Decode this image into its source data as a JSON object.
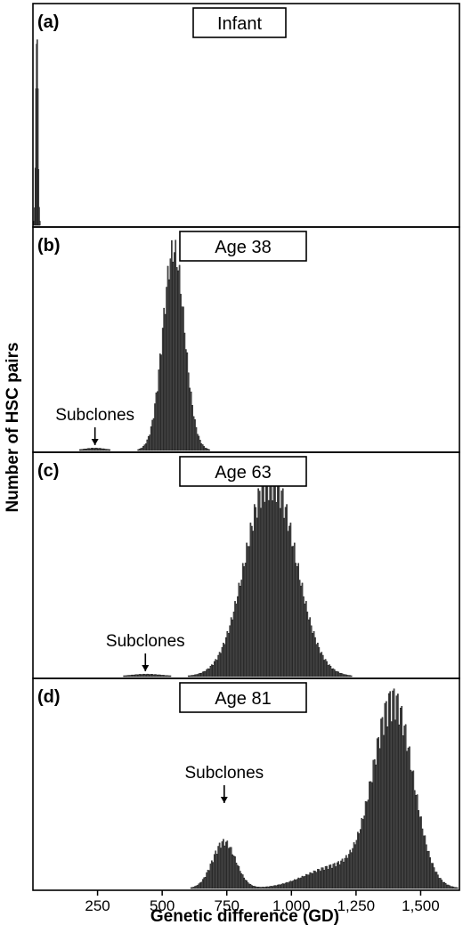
{
  "chart_data": {
    "type": "bar",
    "xlabel": "Genetic difference (GD)",
    "ylabel": "Number of HSC pairs",
    "xlim": [
      0,
      1650
    ],
    "xticks": [
      250,
      500,
      750,
      1000,
      1250,
      1500
    ],
    "xtick_labels": [
      "250",
      "500",
      "750",
      "1,000",
      "1,250",
      "1,500"
    ],
    "panels": [
      {
        "letter": "(a)",
        "title": "Infant",
        "components": [
          {
            "mean": 15,
            "sd": 4,
            "peak": 1.0
          }
        ]
      },
      {
        "letter": "(b)",
        "title": "Age 38",
        "annotation": {
          "text": "Subclones",
          "x": 240
        },
        "components": [
          {
            "mean": 545,
            "sd": 42,
            "peak": 1.0
          },
          {
            "mean": 240,
            "sd": 40,
            "peak": 0.012
          }
        ]
      },
      {
        "letter": "(c)",
        "title": "Age 63",
        "annotation": {
          "text": "Subclones",
          "x": 435
        },
        "components": [
          {
            "mean": 920,
            "sd": 95,
            "peak": 1.0
          },
          {
            "mean": 440,
            "sd": 60,
            "peak": 0.012
          }
        ]
      },
      {
        "letter": "(d)",
        "title": "Age 81",
        "annotation": {
          "text": "Subclones",
          "x": 740
        },
        "components": [
          {
            "mean": 1395,
            "sd": 75,
            "peak": 1.0
          },
          {
            "mean": 1180,
            "sd": 120,
            "peak": 0.12
          },
          {
            "mean": 740,
            "sd": 45,
            "peak": 0.25
          }
        ]
      }
    ]
  }
}
